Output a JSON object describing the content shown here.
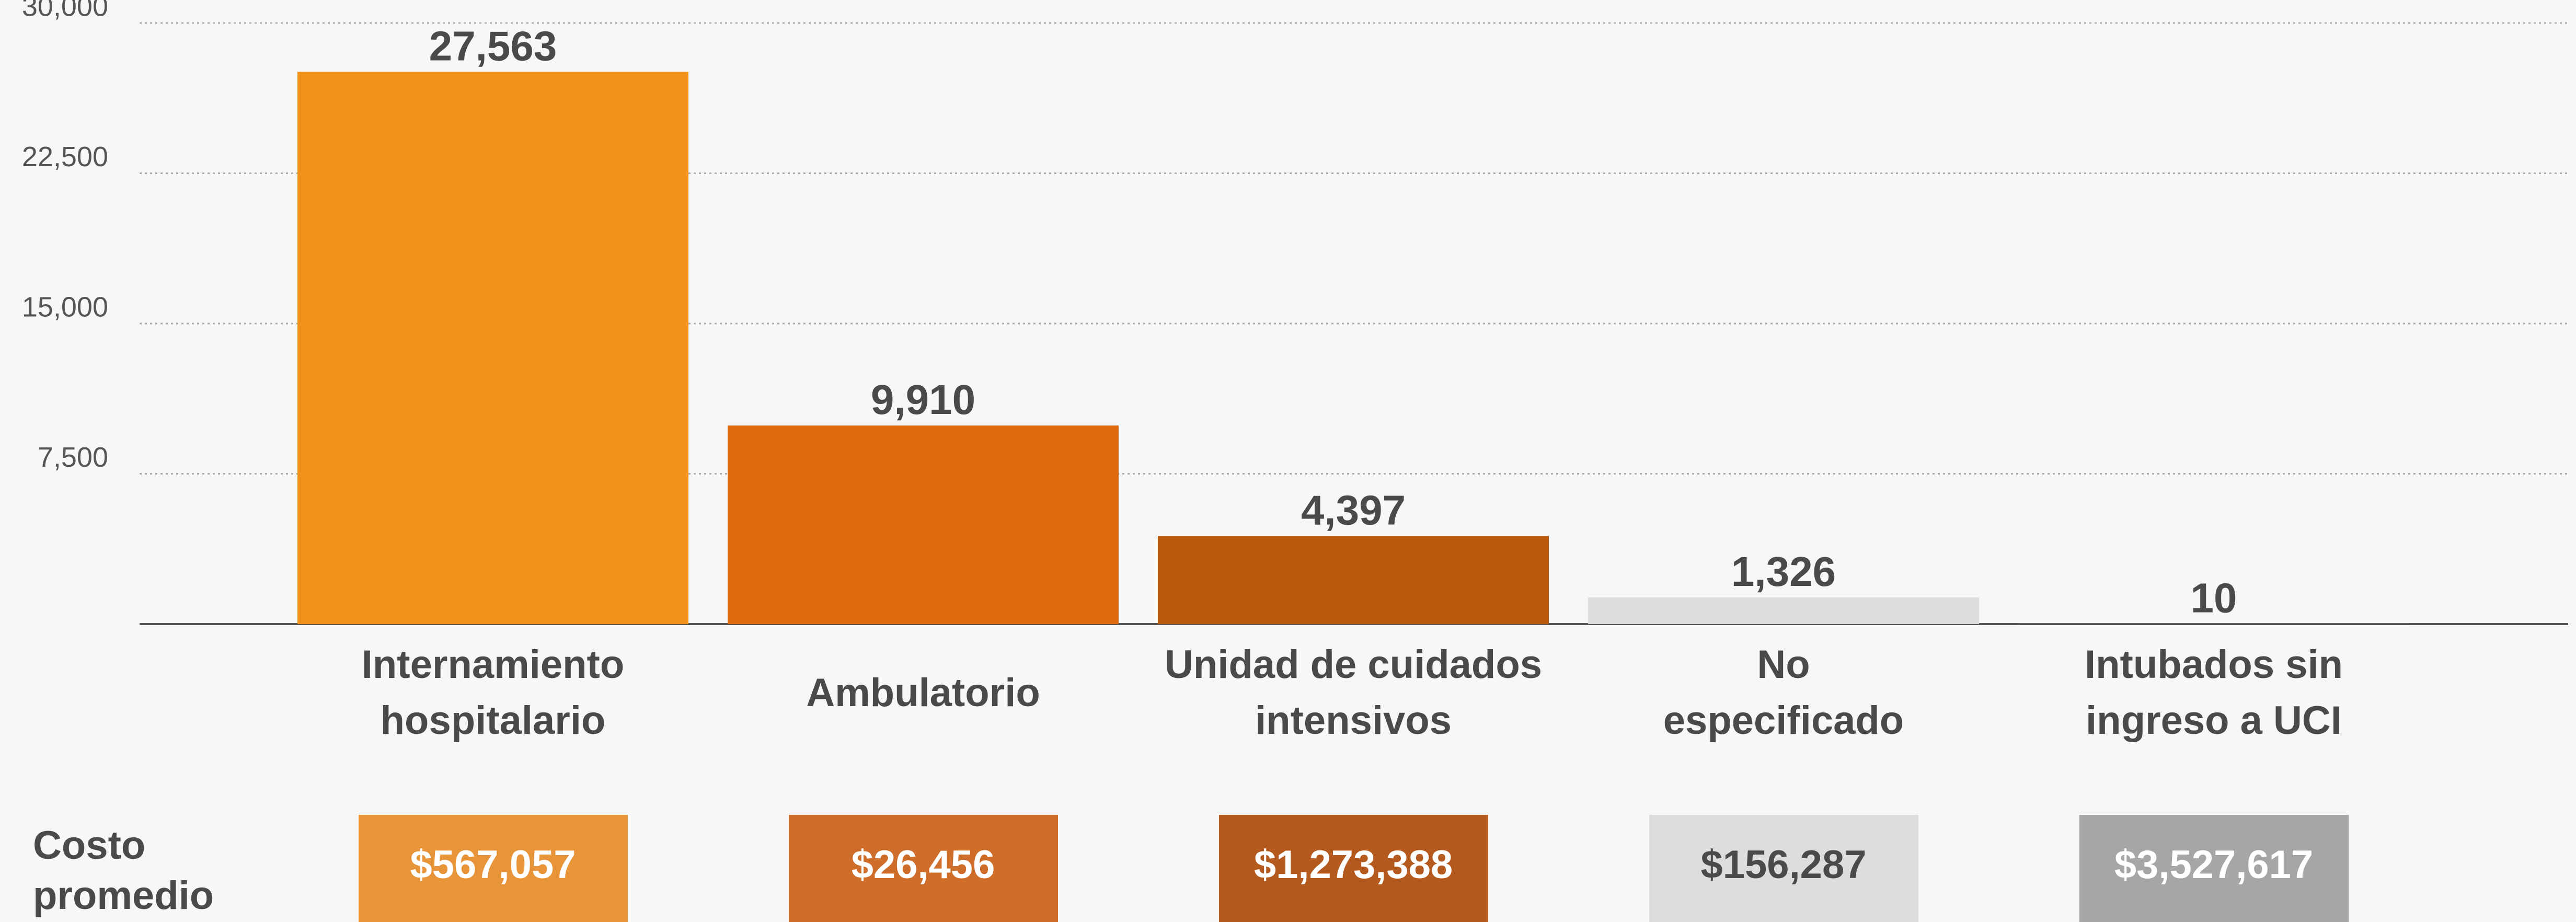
{
  "chart_data": {
    "type": "bar",
    "categories": [
      "Internamiento\nhospitalario",
      "Ambulatorio",
      "Unidad de cuidados\nintensivos",
      "No\nespecificado",
      "Intubados sin\ningreso a UCI"
    ],
    "values": [
      27563,
      9910,
      4397,
      1326,
      10
    ],
    "value_labels": [
      "27,563",
      "9,910",
      "4,397",
      "1,326",
      "10"
    ],
    "colors": [
      "#f39219",
      "#de6a10",
      "#b9590c",
      "#dcdddf",
      "#a6a8a7"
    ],
    "ylim": [
      0,
      30000
    ],
    "yticks": [
      {
        "value": 7500,
        "label": "7,500"
      },
      {
        "value": 15000,
        "label": "15,000"
      },
      {
        "value": 22500,
        "label": "22,500"
      },
      {
        "value": 30000,
        "label": "30,000"
      }
    ],
    "grid": true,
    "avg_cost": {
      "label": "Costo\npromedio",
      "labels": [
        "$567,057",
        "$26,456",
        "$1,273,388",
        "$156,287",
        "$3,527,617"
      ],
      "colors": [
        "#e8953a",
        "#cf6e2a",
        "#b55a1e",
        "#dcdddf",
        "#a5a7a6"
      ],
      "text_colors": [
        "#ffffff",
        "#ffffff",
        "#ffffff",
        "#4a4a4a",
        "#ffffff"
      ]
    }
  }
}
